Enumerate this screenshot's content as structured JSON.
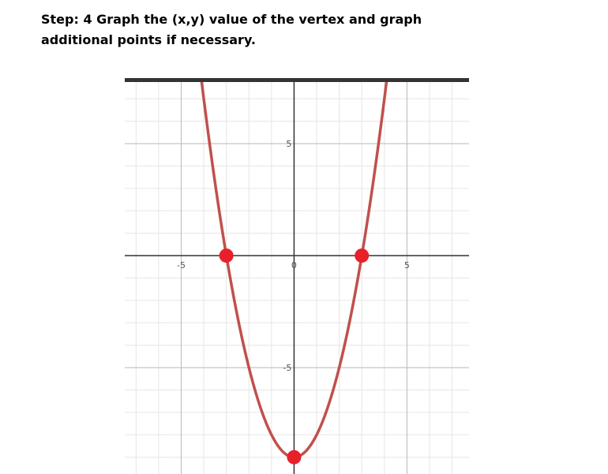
{
  "instruction": {
    "line1": "Step: 4 Graph the (x,y) value of the vertex and graph",
    "line2": "additional points if necessary."
  },
  "chart_data": {
    "type": "line",
    "title": "",
    "xlabel": "",
    "ylabel": "",
    "xlim": [
      -7.5,
      7.75
    ],
    "ylim": [
      -9.75,
      7.75
    ],
    "grid": true,
    "x_tick_labels": [
      "-5",
      "0",
      "5"
    ],
    "y_tick_labels": [
      "5",
      "-5"
    ],
    "curve": {
      "name": "y = x^2 - 9",
      "vertex": [
        0,
        -9
      ],
      "a": 1,
      "color": "#c0504d"
    },
    "points": [
      {
        "x": -3,
        "y": 0
      },
      {
        "x": 3,
        "y": 0
      },
      {
        "x": 0,
        "y": -9
      }
    ],
    "point_color": "#e8202a"
  }
}
